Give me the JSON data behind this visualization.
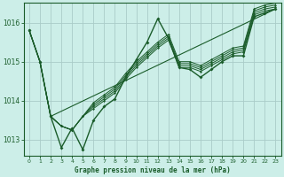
{
  "background_color": "#cceee8",
  "grid_color": "#aaccc8",
  "line_color": "#1a5c2a",
  "xlabel": "Graphe pression niveau de la mer (hPa)",
  "ylim": [
    1012.6,
    1016.5
  ],
  "xlim": [
    -0.5,
    23.5
  ],
  "yticks": [
    1013,
    1014,
    1015,
    1016
  ],
  "xticks": [
    0,
    1,
    2,
    3,
    4,
    5,
    6,
    7,
    8,
    9,
    10,
    11,
    12,
    13,
    14,
    15,
    16,
    17,
    18,
    19,
    20,
    21,
    22,
    23
  ],
  "series": [
    [
      1015.8,
      1015.0,
      1013.6,
      1012.8,
      1013.3,
      1012.75,
      1013.5,
      1013.85,
      1014.05,
      1014.6,
      1015.05,
      1015.5,
      1016.1,
      1015.6,
      1014.85,
      1014.8,
      1014.6,
      1014.8,
      1015.0,
      1015.15,
      1015.15,
      1016.15,
      1016.25,
      1016.35
    ],
    [
      1015.8,
      1015.0,
      1013.6,
      1013.35,
      1013.25,
      1013.6,
      1013.8,
      1014.0,
      1014.2,
      1014.55,
      1014.85,
      1015.1,
      1015.35,
      1015.55,
      1014.85,
      1014.85,
      1014.75,
      1014.9,
      1015.05,
      1015.2,
      1015.25,
      1016.2,
      1016.3,
      1016.35
    ],
    [
      1015.8,
      1015.0,
      1013.6,
      1013.35,
      1013.25,
      1013.6,
      1013.85,
      1014.05,
      1014.25,
      1014.6,
      1014.9,
      1015.15,
      1015.4,
      1015.6,
      1014.9,
      1014.9,
      1014.8,
      1014.95,
      1015.1,
      1015.25,
      1015.3,
      1016.25,
      1016.35,
      1016.4
    ],
    [
      1015.8,
      1015.0,
      1013.6,
      1013.35,
      1013.25,
      1013.6,
      1013.9,
      1014.1,
      1014.3,
      1014.65,
      1014.95,
      1015.2,
      1015.45,
      1015.65,
      1014.95,
      1014.95,
      1014.85,
      1015.0,
      1015.15,
      1015.3,
      1015.35,
      1016.3,
      1016.4,
      1016.45
    ],
    [
      1015.8,
      1015.0,
      1013.6,
      1013.35,
      1013.25,
      1013.6,
      1013.95,
      1014.15,
      1014.35,
      1014.7,
      1015.0,
      1015.25,
      1015.5,
      1015.7,
      1015.0,
      1015.0,
      1014.9,
      1015.05,
      1015.2,
      1015.35,
      1015.4,
      1016.35,
      1016.45,
      1016.5
    ]
  ],
  "straight_line": [
    1013.6,
    1016.35
  ],
  "straight_line_x": [
    2,
    23
  ]
}
